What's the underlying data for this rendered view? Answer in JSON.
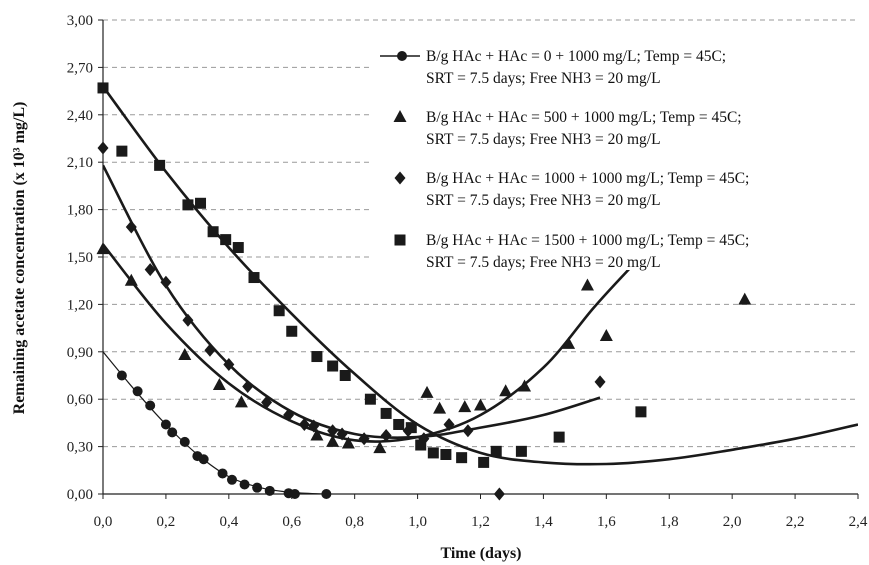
{
  "chart_data": {
    "type": "scatter",
    "xlabel": "Time (days)",
    "ylabel": "Remaining acetate concentration (x 10³ mg/L)",
    "xlim": [
      0,
      2.4
    ],
    "ylim": [
      0,
      3.0
    ],
    "x_ticks": [
      "0,0",
      "0,2",
      "0,4",
      "0,6",
      "0,8",
      "1,0",
      "1,2",
      "1,4",
      "1,6",
      "1,8",
      "2,0",
      "2,2",
      "2,4"
    ],
    "y_ticks": [
      "0,00",
      "0,30",
      "0,60",
      "0,90",
      "1,20",
      "1,50",
      "1,80",
      "2,10",
      "2,40",
      "2,70",
      "3,00"
    ],
    "grid": "horizontal dashed",
    "legend_position": "top-right",
    "series": [
      {
        "name": "B/g HAc + HAc = 0 + 1000 mg/L; Temp = 45C;",
        "name_line2": "SRT = 7.5 days; Free NH3 = 20 mg/L",
        "marker": "circle",
        "points": [
          [
            0.06,
            0.75
          ],
          [
            0.11,
            0.65
          ],
          [
            0.15,
            0.56
          ],
          [
            0.2,
            0.44
          ],
          [
            0.22,
            0.39
          ],
          [
            0.26,
            0.33
          ],
          [
            0.3,
            0.24
          ],
          [
            0.32,
            0.22
          ],
          [
            0.38,
            0.13
          ],
          [
            0.41,
            0.09
          ],
          [
            0.45,
            0.06
          ],
          [
            0.49,
            0.04
          ],
          [
            0.53,
            0.02
          ],
          [
            0.59,
            0.005
          ],
          [
            0.61,
            0.0
          ],
          [
            0.71,
            0.0
          ]
        ],
        "curve": [
          [
            0.0,
            0.9
          ],
          [
            0.1,
            0.66
          ],
          [
            0.2,
            0.44
          ],
          [
            0.3,
            0.25
          ],
          [
            0.4,
            0.11
          ],
          [
            0.5,
            0.04
          ],
          [
            0.6,
            0.01
          ],
          [
            0.7,
            0.0
          ]
        ]
      },
      {
        "name": "B/g HAc + HAc = 500 + 1000 mg/L; Temp = 45C;",
        "name_line2": "SRT = 7.5 days; Free NH3 = 20 mg/L",
        "marker": "triangle",
        "points": [
          [
            0.0,
            1.55
          ],
          [
            0.09,
            1.35
          ],
          [
            0.26,
            0.88
          ],
          [
            0.37,
            0.69
          ],
          [
            0.44,
            0.58
          ],
          [
            0.68,
            0.37
          ],
          [
            0.73,
            0.33
          ],
          [
            0.78,
            0.32
          ],
          [
            0.88,
            0.29
          ],
          [
            1.03,
            0.64
          ],
          [
            1.07,
            0.54
          ],
          [
            1.15,
            0.55
          ],
          [
            1.2,
            0.56
          ],
          [
            1.28,
            0.65
          ],
          [
            1.34,
            0.68
          ],
          [
            1.48,
            0.95
          ],
          [
            1.54,
            1.32
          ],
          [
            1.6,
            1.0
          ],
          [
            2.04,
            1.23
          ]
        ],
        "curve": [
          [
            0.0,
            1.58
          ],
          [
            0.2,
            1.08
          ],
          [
            0.4,
            0.7
          ],
          [
            0.6,
            0.46
          ],
          [
            0.8,
            0.34
          ],
          [
            1.0,
            0.36
          ],
          [
            1.2,
            0.5
          ],
          [
            1.4,
            0.8
          ],
          [
            1.56,
            1.18
          ],
          [
            1.68,
            1.44
          ]
        ]
      },
      {
        "name": "B/g HAc + HAc = 1000 + 1000 mg/L; Temp = 45C;",
        "name_line2": "SRT = 7.5 days; Free NH3 = 20 mg/L",
        "marker": "diamond",
        "points": [
          [
            0.0,
            2.19
          ],
          [
            0.09,
            1.69
          ],
          [
            0.15,
            1.42
          ],
          [
            0.2,
            1.34
          ],
          [
            0.27,
            1.1
          ],
          [
            0.34,
            0.91
          ],
          [
            0.4,
            0.82
          ],
          [
            0.46,
            0.68
          ],
          [
            0.52,
            0.58
          ],
          [
            0.59,
            0.5
          ],
          [
            0.64,
            0.44
          ],
          [
            0.67,
            0.43
          ],
          [
            0.73,
            0.4
          ],
          [
            0.76,
            0.38
          ],
          [
            0.83,
            0.35
          ],
          [
            0.9,
            0.37
          ],
          [
            0.97,
            0.4
          ],
          [
            1.02,
            0.35
          ],
          [
            1.1,
            0.44
          ],
          [
            1.16,
            0.4
          ],
          [
            1.26,
            0.0
          ],
          [
            1.58,
            0.71
          ]
        ],
        "curve": [
          [
            0.0,
            2.08
          ],
          [
            0.2,
            1.32
          ],
          [
            0.4,
            0.82
          ],
          [
            0.6,
            0.52
          ],
          [
            0.8,
            0.38
          ],
          [
            1.0,
            0.36
          ],
          [
            1.2,
            0.42
          ],
          [
            1.4,
            0.5
          ],
          [
            1.58,
            0.61
          ]
        ]
      },
      {
        "name": "B/g HAc + HAc = 1500 + 1000 mg/L; Temp = 45C;",
        "name_line2": "SRT = 7.5 days; Free NH3 = 20 mg/L",
        "marker": "square",
        "points": [
          [
            0.0,
            2.57
          ],
          [
            0.06,
            2.17
          ],
          [
            0.18,
            2.08
          ],
          [
            0.27,
            1.83
          ],
          [
            0.31,
            1.84
          ],
          [
            0.35,
            1.66
          ],
          [
            0.39,
            1.61
          ],
          [
            0.43,
            1.56
          ],
          [
            0.48,
            1.37
          ],
          [
            0.56,
            1.16
          ],
          [
            0.6,
            1.03
          ],
          [
            0.68,
            0.87
          ],
          [
            0.73,
            0.81
          ],
          [
            0.77,
            0.75
          ],
          [
            0.85,
            0.6
          ],
          [
            0.9,
            0.51
          ],
          [
            0.94,
            0.44
          ],
          [
            0.98,
            0.42
          ],
          [
            1.01,
            0.31
          ],
          [
            1.05,
            0.26
          ],
          [
            1.09,
            0.25
          ],
          [
            1.14,
            0.23
          ],
          [
            1.21,
            0.2
          ],
          [
            1.25,
            0.27
          ],
          [
            1.33,
            0.27
          ],
          [
            1.45,
            0.36
          ],
          [
            1.71,
            0.52
          ]
        ],
        "curve": [
          [
            0.0,
            2.58
          ],
          [
            0.2,
            2.04
          ],
          [
            0.4,
            1.56
          ],
          [
            0.6,
            1.14
          ],
          [
            0.8,
            0.76
          ],
          [
            1.0,
            0.44
          ],
          [
            1.2,
            0.26
          ],
          [
            1.4,
            0.2
          ],
          [
            1.6,
            0.19
          ],
          [
            1.8,
            0.22
          ],
          [
            2.0,
            0.28
          ],
          [
            2.2,
            0.35
          ],
          [
            2.4,
            0.44
          ]
        ]
      }
    ]
  }
}
